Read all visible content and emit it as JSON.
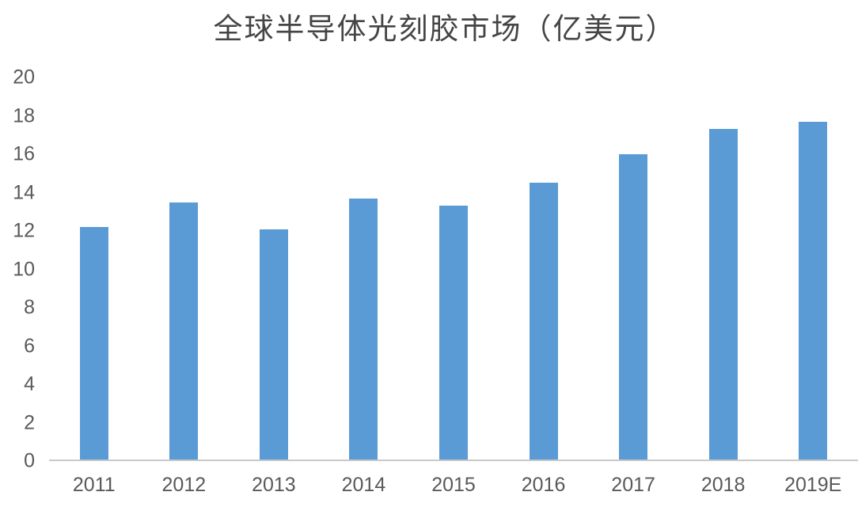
{
  "chart_data": {
    "type": "bar",
    "title": "全球半导体光刻胶市场（亿美元）",
    "categories": [
      "2011",
      "2012",
      "2013",
      "2014",
      "2015",
      "2016",
      "2017",
      "2018",
      "2019E"
    ],
    "values": [
      12.2,
      13.5,
      12.1,
      13.7,
      13.3,
      14.5,
      16.0,
      17.3,
      17.7
    ],
    "series_name": "全球半导体光刻胶市场",
    "xlabel": "",
    "ylabel": "",
    "ylim": [
      0,
      20
    ],
    "y_ticks": [
      0,
      2,
      4,
      6,
      8,
      10,
      12,
      14,
      16,
      18,
      20
    ],
    "grid": false,
    "legend": false,
    "colors": {
      "bar": "#5B9BD5",
      "title_text": "#454545",
      "axis_text": "#595959",
      "axis_line": "#C9C9C9",
      "background": "#FFFFFF"
    }
  }
}
